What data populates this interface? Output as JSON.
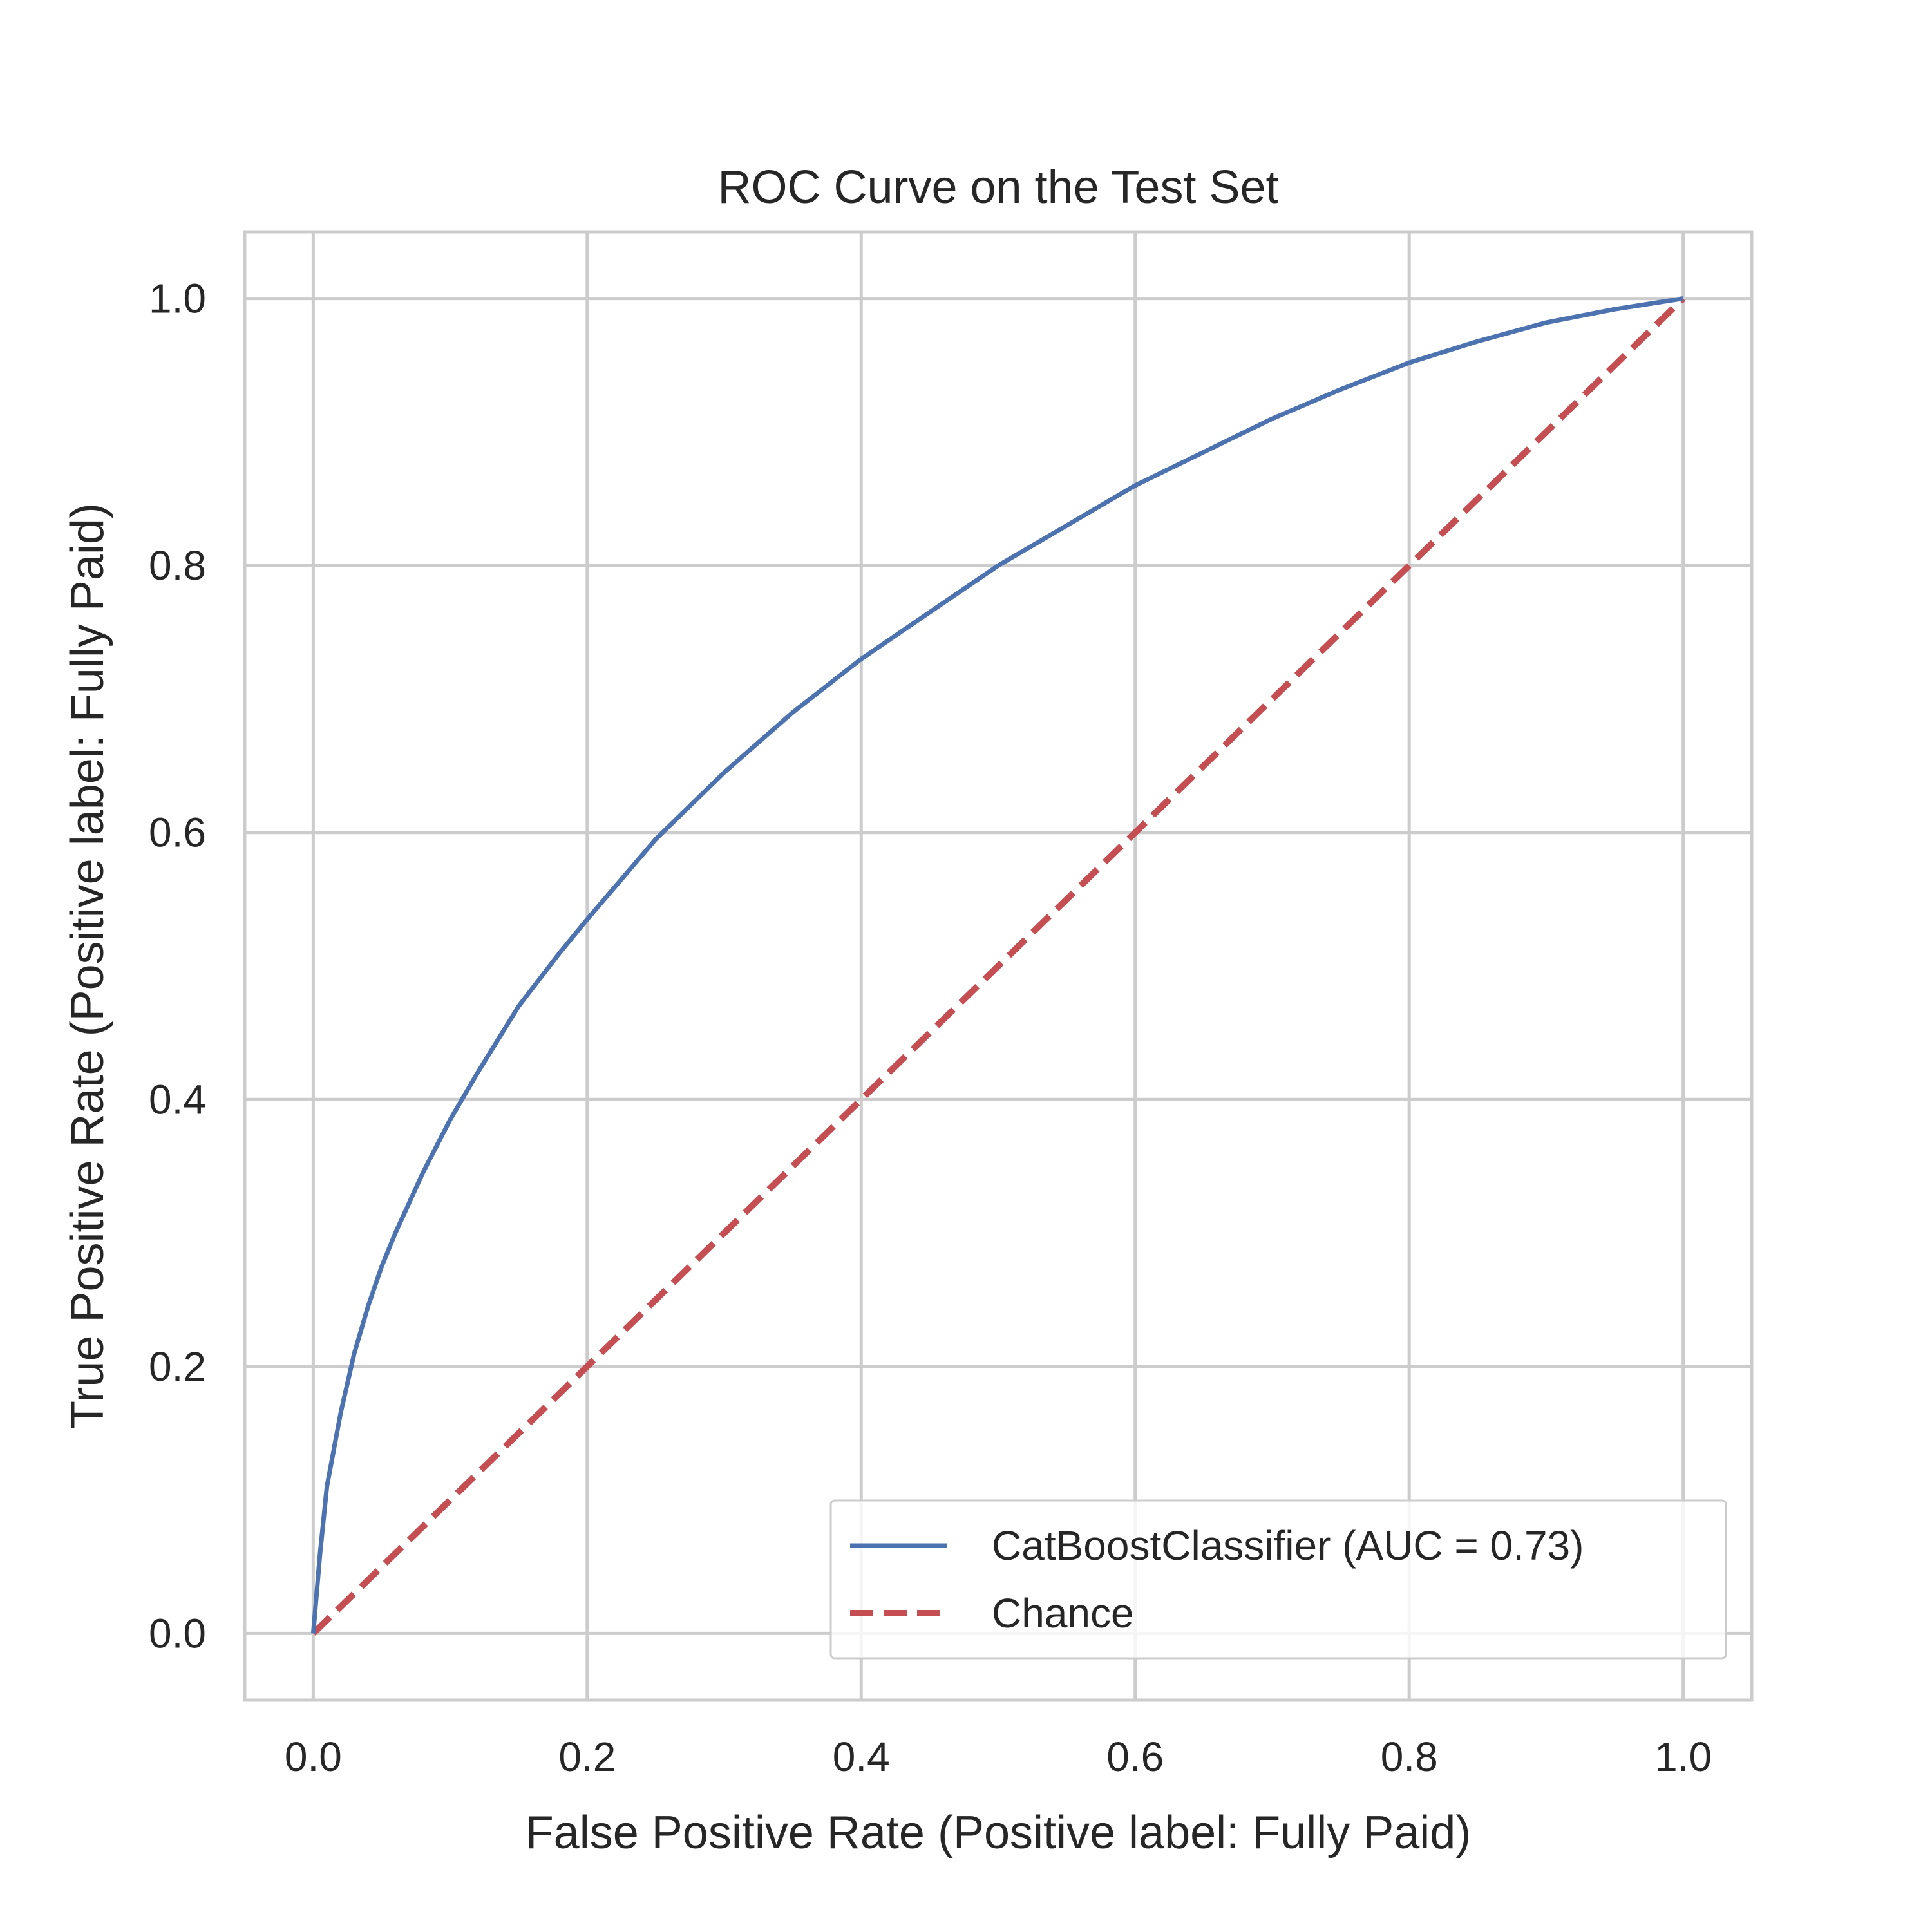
{
  "chart_data": {
    "type": "line",
    "title": "ROC Curve on the Test Set",
    "xlabel": "False Positive Rate (Positive label: Fully Paid)",
    "ylabel": "True Positive Rate (Positive label: Fully Paid)",
    "xlim": [
      -0.05,
      1.05
    ],
    "ylim": [
      -0.05,
      1.05
    ],
    "xticks": [
      0.0,
      0.2,
      0.4,
      0.6,
      0.8,
      1.0
    ],
    "yticks": [
      0.0,
      0.2,
      0.4,
      0.6,
      0.8,
      1.0
    ],
    "xtick_labels": [
      "0.0",
      "0.2",
      "0.4",
      "0.6",
      "0.8",
      "1.0"
    ],
    "ytick_labels": [
      "0.0",
      "0.2",
      "0.4",
      "0.6",
      "0.8",
      "1.0"
    ],
    "grid": true,
    "legend_position": "lower-right",
    "series": [
      {
        "name": "CatBoostClassifier (AUC = 0.73)",
        "style": "solid",
        "color": "#4c72b0",
        "x": [
          0.0,
          0.005,
          0.01,
          0.02,
          0.03,
          0.04,
          0.05,
          0.06,
          0.08,
          0.1,
          0.12,
          0.15,
          0.18,
          0.2,
          0.25,
          0.3,
          0.35,
          0.4,
          0.45,
          0.5,
          0.55,
          0.6,
          0.65,
          0.7,
          0.75,
          0.8,
          0.85,
          0.9,
          0.95,
          1.0
        ],
        "y": [
          0.0,
          0.06,
          0.11,
          0.165,
          0.21,
          0.245,
          0.275,
          0.3,
          0.345,
          0.385,
          0.42,
          0.47,
          0.51,
          0.535,
          0.595,
          0.645,
          0.69,
          0.73,
          0.765,
          0.8,
          0.83,
          0.86,
          0.885,
          0.91,
          0.932,
          0.952,
          0.968,
          0.982,
          0.992,
          1.0
        ]
      },
      {
        "name": "Chance",
        "style": "dashed",
        "color": "#c44e52",
        "x": [
          0.0,
          1.0
        ],
        "y": [
          0.0,
          1.0
        ]
      }
    ]
  }
}
